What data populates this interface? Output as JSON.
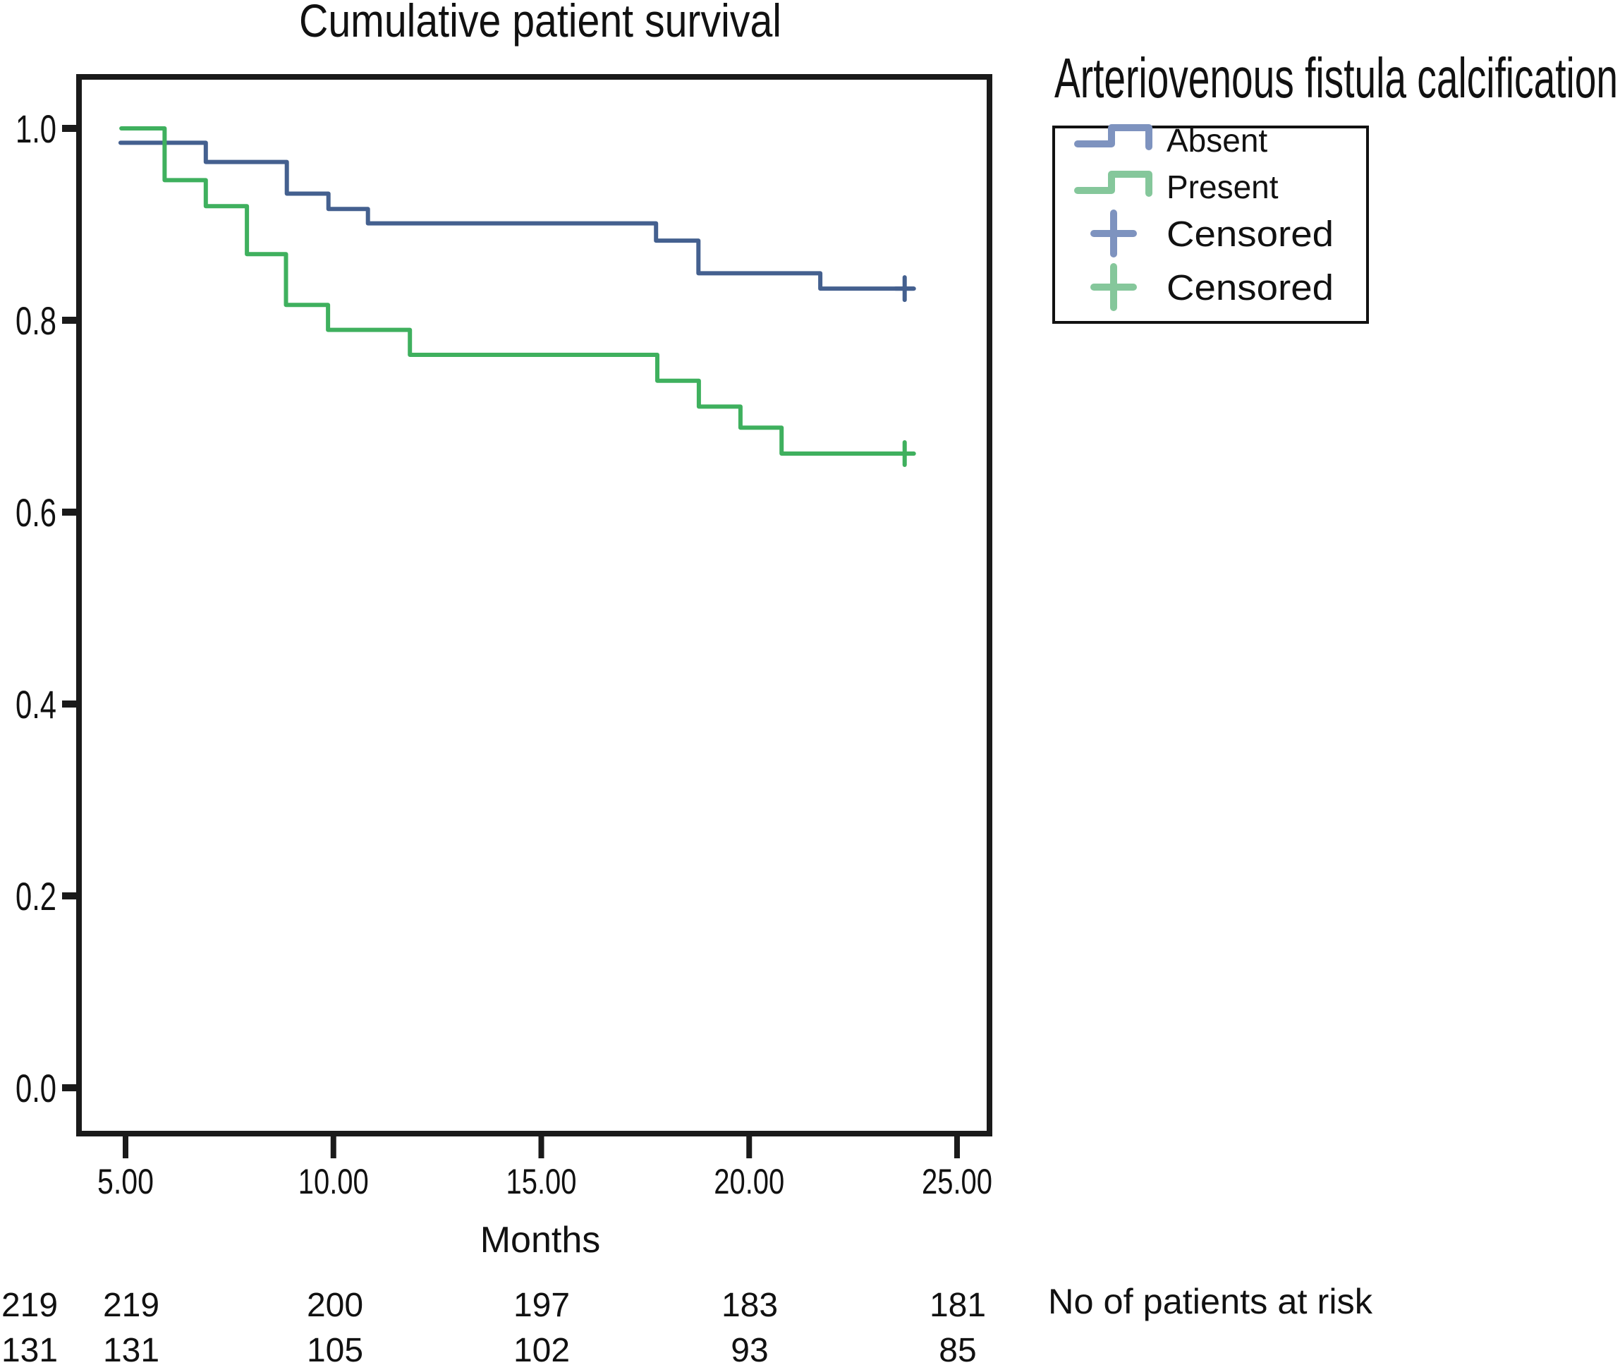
{
  "figure": {
    "title": "Cumulative patient survival"
  },
  "legend": {
    "title": "Arteriovenous fistula calcification",
    "items": [
      {
        "label": "Absent",
        "marker": "step-line",
        "color": "#7e93bf"
      },
      {
        "label": "Present",
        "marker": "step-line",
        "color": "#85c79b"
      },
      {
        "label": "Censored",
        "marker": "plus",
        "color": "#7e93bf"
      },
      {
        "label": "Censored",
        "marker": "plus",
        "color": "#85c79b"
      }
    ]
  },
  "chart_data": {
    "type": "line",
    "subtype": "kaplan-meier-step",
    "title": "Cumulative patient survival",
    "xlabel": "Months",
    "ylabel": "",
    "xlim": [
      3.9,
      25.8
    ],
    "ylim": [
      -0.048,
      1.054
    ],
    "grid": false,
    "legend_position": "top-right-outside",
    "xticks": [
      {
        "value": 5,
        "label": "5.00"
      },
      {
        "value": 10,
        "label": "10.00"
      },
      {
        "value": 15,
        "label": "15.00"
      },
      {
        "value": 20,
        "label": "20.00"
      },
      {
        "value": 25,
        "label": "25.00"
      }
    ],
    "yticks": [
      {
        "value": 1.0,
        "label": "1.0"
      },
      {
        "value": 0.8,
        "label": "0.8"
      },
      {
        "value": 0.6,
        "label": "0.6"
      },
      {
        "value": 0.4,
        "label": "0.4"
      },
      {
        "value": 0.2,
        "label": "0.2"
      },
      {
        "value": 0.0,
        "label": "0.0"
      }
    ],
    "series": [
      {
        "name": "Absent",
        "color": "#44608f",
        "points": [
          [
            4.88,
            0.985
          ],
          [
            6.93,
            0.985
          ],
          [
            6.93,
            0.965
          ],
          [
            8.88,
            0.965
          ],
          [
            8.88,
            0.932
          ],
          [
            9.88,
            0.932
          ],
          [
            9.88,
            0.916
          ],
          [
            10.83,
            0.916
          ],
          [
            10.83,
            0.901
          ],
          [
            17.76,
            0.901
          ],
          [
            17.76,
            0.883
          ],
          [
            18.78,
            0.883
          ],
          [
            18.78,
            0.849
          ],
          [
            21.71,
            0.849
          ],
          [
            21.71,
            0.833
          ],
          [
            23.95,
            0.833
          ]
        ],
        "censored": [
          [
            23.74,
            0.833
          ]
        ]
      },
      {
        "name": "Present",
        "color": "#3fb05e",
        "points": [
          [
            4.9,
            1.0
          ],
          [
            5.94,
            1.0
          ],
          [
            5.94,
            0.946
          ],
          [
            6.93,
            0.946
          ],
          [
            6.93,
            0.919
          ],
          [
            7.92,
            0.919
          ],
          [
            7.92,
            0.869
          ],
          [
            8.86,
            0.869
          ],
          [
            8.86,
            0.816
          ],
          [
            9.87,
            0.816
          ],
          [
            9.87,
            0.79
          ],
          [
            11.84,
            0.79
          ],
          [
            11.84,
            0.764
          ],
          [
            17.79,
            0.764
          ],
          [
            17.79,
            0.737
          ],
          [
            18.79,
            0.737
          ],
          [
            18.79,
            0.71
          ],
          [
            19.79,
            0.71
          ],
          [
            19.79,
            0.688
          ],
          [
            20.78,
            0.688
          ],
          [
            20.78,
            0.661
          ],
          [
            23.95,
            0.661
          ]
        ],
        "censored": [
          [
            23.74,
            0.661
          ]
        ]
      }
    ]
  },
  "at_risk": {
    "label": "No of patients at risk",
    "rows": [
      {
        "group": "Absent",
        "values": [
          "219",
          "219",
          "200",
          "197",
          "183",
          "181"
        ]
      },
      {
        "group": "Present",
        "values": [
          "131",
          "131",
          "105",
          "102",
          "93",
          "85"
        ]
      }
    ]
  },
  "colors": {
    "axis": "#1a1a1a",
    "absent_line": "#44608f",
    "present_line": "#3fb05e",
    "legend_absent": "#7e93bf",
    "legend_present": "#85c79b"
  }
}
